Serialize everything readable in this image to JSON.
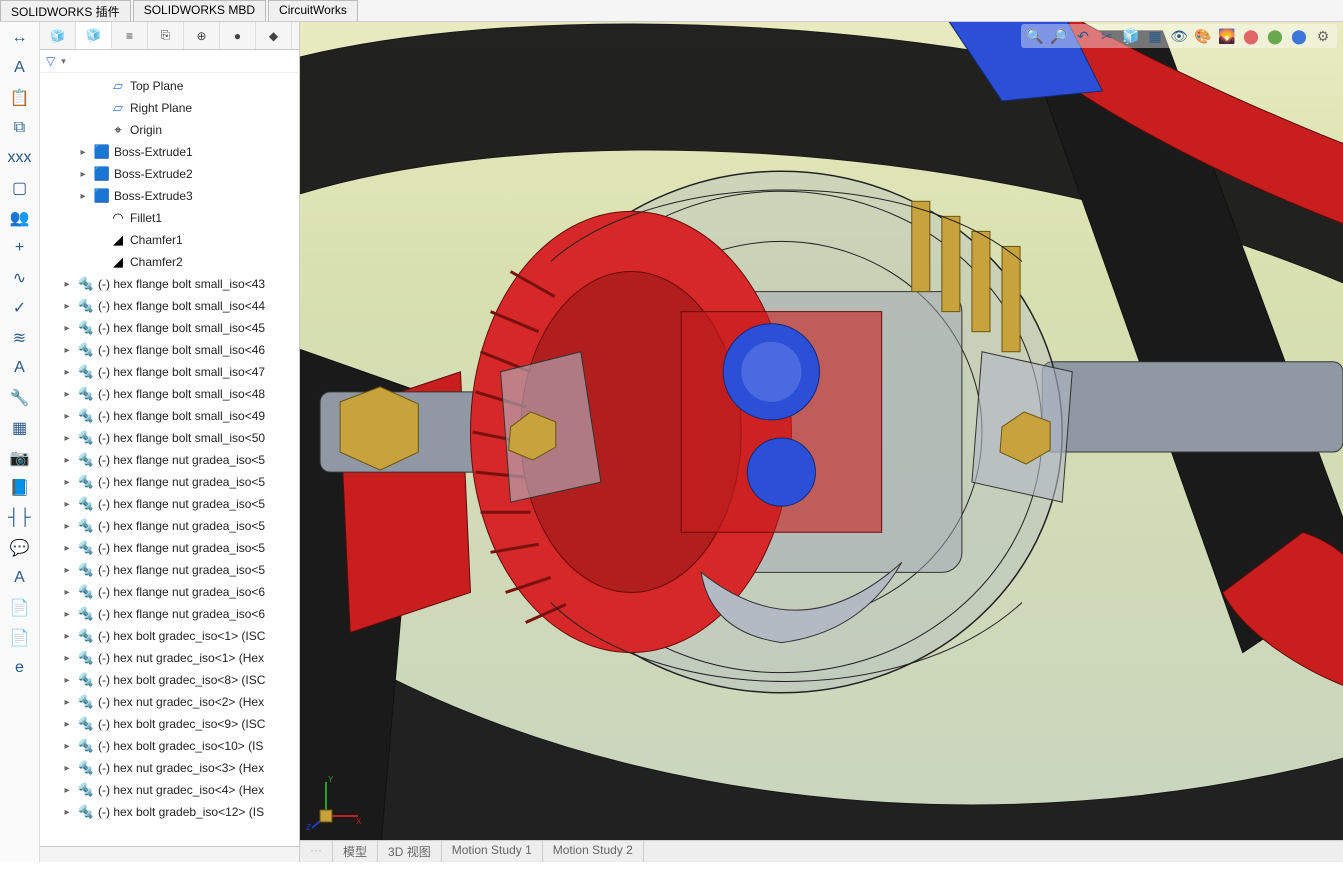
{
  "topTabs": [
    "SOLIDWORKS 插件",
    "SOLIDWORKS MBD",
    "CircuitWorks"
  ],
  "leftToolbar": [
    {
      "name": "dimension-icon",
      "glyph": "↔"
    },
    {
      "name": "note-icon",
      "glyph": "A"
    },
    {
      "name": "clipboard-icon",
      "glyph": "📋"
    },
    {
      "name": "drawing-icon",
      "glyph": "⧉"
    },
    {
      "name": "label-icon",
      "glyph": "xxx"
    },
    {
      "name": "section-icon",
      "glyph": "▢"
    },
    {
      "name": "people-icon",
      "glyph": "👥"
    },
    {
      "name": "add-icon",
      "glyph": "+"
    },
    {
      "name": "spline-icon",
      "glyph": "∿"
    },
    {
      "name": "check-icon",
      "glyph": "✓"
    },
    {
      "name": "style-icon",
      "glyph": "≋"
    },
    {
      "name": "font-icon",
      "glyph": "A"
    },
    {
      "name": "wrench-icon",
      "glyph": "🔧"
    },
    {
      "name": "table-icon",
      "glyph": "▦"
    },
    {
      "name": "camera-icon",
      "glyph": "📷"
    },
    {
      "name": "book-icon",
      "glyph": "📘"
    },
    {
      "name": "align-icon",
      "glyph": "┤├"
    },
    {
      "name": "balloon-icon",
      "glyph": "💬"
    },
    {
      "name": "text-icon",
      "glyph": "A"
    },
    {
      "name": "pdf-icon",
      "glyph": "📄"
    },
    {
      "name": "pdf3d-icon",
      "glyph": "📄"
    },
    {
      "name": "edrawings-icon",
      "glyph": "e"
    }
  ],
  "panelTabs": [
    {
      "name": "assembly-tab",
      "glyph": "🧊",
      "active": false
    },
    {
      "name": "feature-tab",
      "glyph": "🧊",
      "active": true
    },
    {
      "name": "property-tab",
      "glyph": "≡",
      "active": false
    },
    {
      "name": "config-tab",
      "glyph": "⎘",
      "active": false
    },
    {
      "name": "display-tab",
      "glyph": "⊕",
      "active": false
    },
    {
      "name": "appearance-tab",
      "glyph": "●",
      "active": false
    },
    {
      "name": "decal-tab",
      "glyph": "◆",
      "active": false
    }
  ],
  "filterLabel": "▽",
  "tree": [
    {
      "indent": 3,
      "exp": "",
      "icon": "plane",
      "label": "Top Plane"
    },
    {
      "indent": 3,
      "exp": "",
      "icon": "plane",
      "label": "Right Plane"
    },
    {
      "indent": 3,
      "exp": "",
      "icon": "origin",
      "label": "Origin"
    },
    {
      "indent": 2,
      "exp": "▸",
      "icon": "extrude",
      "label": "Boss-Extrude1"
    },
    {
      "indent": 2,
      "exp": "▸",
      "icon": "extrude",
      "label": "Boss-Extrude2"
    },
    {
      "indent": 2,
      "exp": "▸",
      "icon": "extrude",
      "label": "Boss-Extrude3"
    },
    {
      "indent": 3,
      "exp": "",
      "icon": "fillet",
      "label": "Fillet1"
    },
    {
      "indent": 3,
      "exp": "",
      "icon": "chamfer",
      "label": "Chamfer1"
    },
    {
      "indent": 3,
      "exp": "",
      "icon": "chamfer",
      "label": "Chamfer2"
    },
    {
      "indent": 1,
      "exp": "▸",
      "icon": "bolt",
      "label": "(-) hex flange bolt small_iso<43"
    },
    {
      "indent": 1,
      "exp": "▸",
      "icon": "bolt",
      "label": "(-) hex flange bolt small_iso<44"
    },
    {
      "indent": 1,
      "exp": "▸",
      "icon": "bolt",
      "label": "(-) hex flange bolt small_iso<45"
    },
    {
      "indent": 1,
      "exp": "▸",
      "icon": "bolt",
      "label": "(-) hex flange bolt small_iso<46"
    },
    {
      "indent": 1,
      "exp": "▸",
      "icon": "bolt",
      "label": "(-) hex flange bolt small_iso<47"
    },
    {
      "indent": 1,
      "exp": "▸",
      "icon": "bolt",
      "label": "(-) hex flange bolt small_iso<48"
    },
    {
      "indent": 1,
      "exp": "▸",
      "icon": "bolt",
      "label": "(-) hex flange bolt small_iso<49"
    },
    {
      "indent": 1,
      "exp": "▸",
      "icon": "bolt",
      "label": "(-) hex flange bolt small_iso<50"
    },
    {
      "indent": 1,
      "exp": "▸",
      "icon": "bolt",
      "label": "(-) hex flange nut gradea_iso<5"
    },
    {
      "indent": 1,
      "exp": "▸",
      "icon": "bolt",
      "label": "(-) hex flange nut gradea_iso<5"
    },
    {
      "indent": 1,
      "exp": "▸",
      "icon": "bolt",
      "label": "(-) hex flange nut gradea_iso<5"
    },
    {
      "indent": 1,
      "exp": "▸",
      "icon": "bolt",
      "label": "(-) hex flange nut gradea_iso<5"
    },
    {
      "indent": 1,
      "exp": "▸",
      "icon": "bolt",
      "label": "(-) hex flange nut gradea_iso<5"
    },
    {
      "indent": 1,
      "exp": "▸",
      "icon": "bolt",
      "label": "(-) hex flange nut gradea_iso<5"
    },
    {
      "indent": 1,
      "exp": "▸",
      "icon": "bolt",
      "label": "(-) hex flange nut gradea_iso<6"
    },
    {
      "indent": 1,
      "exp": "▸",
      "icon": "bolt",
      "label": "(-) hex flange nut gradea_iso<6"
    },
    {
      "indent": 1,
      "exp": "▸",
      "icon": "bolt",
      "label": "(-) hex bolt gradec_iso<1> (ISC"
    },
    {
      "indent": 1,
      "exp": "▸",
      "icon": "bolt",
      "label": "(-) hex nut gradec_iso<1> (Hex"
    },
    {
      "indent": 1,
      "exp": "▸",
      "icon": "bolt",
      "label": "(-) hex bolt gradec_iso<8> (ISC"
    },
    {
      "indent": 1,
      "exp": "▸",
      "icon": "bolt",
      "label": "(-) hex nut gradec_iso<2> (Hex"
    },
    {
      "indent": 1,
      "exp": "▸",
      "icon": "bolt",
      "label": "(-) hex bolt gradec_iso<9> (ISC"
    },
    {
      "indent": 1,
      "exp": "▸",
      "icon": "bolt",
      "label": "(-) hex bolt gradec_iso<10> (IS"
    },
    {
      "indent": 1,
      "exp": "▸",
      "icon": "bolt",
      "label": "(-) hex nut gradec_iso<3> (Hex"
    },
    {
      "indent": 1,
      "exp": "▸",
      "icon": "bolt",
      "label": "(-) hex nut gradec_iso<4> (Hex"
    },
    {
      "indent": 1,
      "exp": "▸",
      "icon": "bolt",
      "label": "(-) hex bolt gradeb_iso<12> (IS"
    }
  ],
  "iconMap": {
    "plane": "▱",
    "origin": "⌖",
    "extrude": "🟦",
    "fillet": "◠",
    "chamfer": "◢",
    "bolt": "🔩"
  },
  "headsUp": [
    {
      "name": "zoom-fit-icon",
      "glyph": "🔍",
      "color": "#2a5a8a"
    },
    {
      "name": "zoom-area-icon",
      "glyph": "🔎",
      "color": "#2a5a8a"
    },
    {
      "name": "prev-view-icon",
      "glyph": "↶",
      "color": "#2a5a8a"
    },
    {
      "name": "section-view-icon",
      "glyph": "✂",
      "color": "#2a5a8a"
    },
    {
      "name": "view-orient-icon",
      "glyph": "🧊",
      "color": "#2a5a8a"
    },
    {
      "name": "display-style-icon",
      "glyph": "▦",
      "color": "#2a5a8a"
    },
    {
      "name": "hide-show-icon",
      "glyph": "👁",
      "color": "#2a5a8a"
    },
    {
      "name": "appearance-icon",
      "glyph": "🎨",
      "color": "#d4a017"
    },
    {
      "name": "scene-icon",
      "glyph": "🌄",
      "color": "#6aa84f"
    },
    {
      "name": "render-icon",
      "glyph": "⬤",
      "color": "#e06666"
    },
    {
      "name": "render2-icon",
      "glyph": "⬤",
      "color": "#6aa84f"
    },
    {
      "name": "render3-icon",
      "glyph": "⬤",
      "color": "#3c78d8"
    },
    {
      "name": "setting-icon",
      "glyph": "⚙",
      "color": "#666"
    }
  ],
  "bottomTabs": [
    "模型",
    "3D 视图",
    "Motion Study 1",
    "Motion Study 2"
  ],
  "viewport": {
    "colors": {
      "frameBlack": "#1a1a1a",
      "tubeRed": "#c81e1e",
      "housingGrey": "#9ca3af",
      "housingTrans": "rgba(156,163,175,0.35)",
      "gearRed": "#d62828",
      "gearBlue": "#2b4fd6",
      "boltBrass": "#c8a23c",
      "edge": "#222"
    }
  }
}
